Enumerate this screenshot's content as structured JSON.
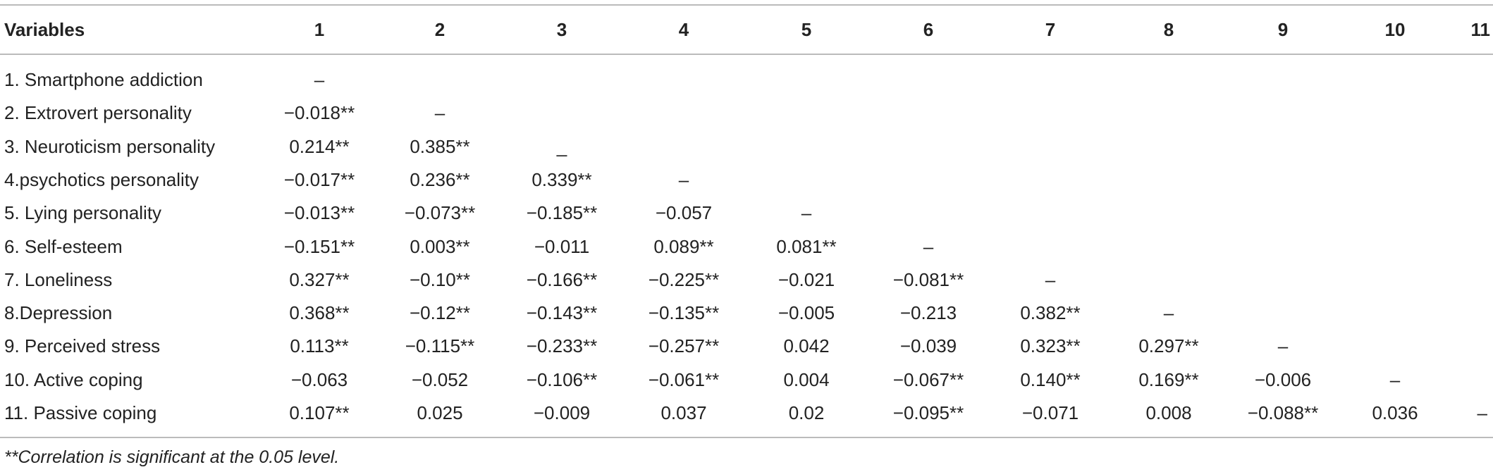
{
  "table": {
    "header": [
      "Variables",
      "1",
      "2",
      "3",
      "4",
      "5",
      "6",
      "7",
      "8",
      "9",
      "10",
      "11"
    ],
    "rows": [
      {
        "label": "1. Smartphone addiction",
        "cells": [
          "–"
        ]
      },
      {
        "label": "2. Extrovert personality",
        "cells": [
          "−0.018**",
          "–"
        ]
      },
      {
        "label": "3. Neuroticism personality",
        "cells": [
          "0.214**",
          "0.385**",
          "_"
        ]
      },
      {
        "label": "4.psychotics personality",
        "cells": [
          "−0.017**",
          "0.236**",
          "0.339**",
          "–"
        ]
      },
      {
        "label": "5. Lying personality",
        "cells": [
          "−0.013**",
          "−0.073**",
          "−0.185**",
          "−0.057",
          "–"
        ]
      },
      {
        "label": "6. Self-esteem",
        "cells": [
          "−0.151**",
          "0.003**",
          "−0.011",
          "0.089**",
          "0.081**",
          "–"
        ]
      },
      {
        "label": "7. Loneliness",
        "cells": [
          "0.327**",
          "−0.10**",
          "−0.166**",
          "−0.225**",
          "−0.021",
          "−0.081**",
          "–"
        ]
      },
      {
        "label": "8.Depression",
        "cells": [
          "0.368**",
          "−0.12**",
          "−0.143**",
          "−0.135**",
          "−0.005",
          "−0.213",
          "0.382**",
          "–"
        ]
      },
      {
        "label": "9. Perceived stress",
        "cells": [
          "0.113**",
          "−0.115**",
          "−0.233**",
          "−0.257**",
          "0.042",
          "−0.039",
          "0.323**",
          "0.297**",
          "–"
        ]
      },
      {
        "label": "10. Active coping",
        "cells": [
          "−0.063",
          "−0.052",
          "−0.106**",
          "−0.061**",
          "0.004",
          "−0.067**",
          "0.140**",
          "0.169**",
          "−0.006",
          "–"
        ]
      },
      {
        "label": "11. Passive coping",
        "cells": [
          "0.107**",
          "0.025",
          "−0.009",
          "0.037",
          "0.02",
          "−0.095**",
          "−0.071",
          "0.008",
          "−0.088**",
          "0.036",
          "–"
        ]
      }
    ],
    "footnote": "**Correlation is significant at the 0.05 level."
  }
}
